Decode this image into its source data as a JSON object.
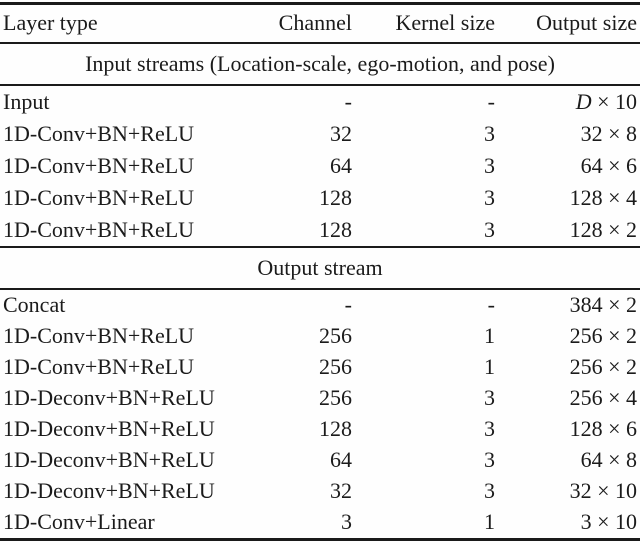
{
  "table": {
    "columns": [
      "Layer type",
      "Channel",
      "Kernel size",
      "Output size"
    ],
    "sections": [
      {
        "title": "Input streams (Location-scale, ego-motion, and pose)",
        "rows": [
          {
            "layer": "Input",
            "channel": "-",
            "kernel": "-",
            "output_var": "D",
            "output_rest": " × 10"
          },
          {
            "layer": "1D-Conv+BN+ReLU",
            "channel": "32",
            "kernel": "3",
            "output": "32 × 8"
          },
          {
            "layer": "1D-Conv+BN+ReLU",
            "channel": "64",
            "kernel": "3",
            "output": "64 × 6"
          },
          {
            "layer": "1D-Conv+BN+ReLU",
            "channel": "128",
            "kernel": "3",
            "output": "128 × 4"
          },
          {
            "layer": "1D-Conv+BN+ReLU",
            "channel": "128",
            "kernel": "3",
            "output": "128 × 2"
          }
        ]
      },
      {
        "title": "Output stream",
        "rows": [
          {
            "layer": "Concat",
            "channel": "-",
            "kernel": "-",
            "output": "384 × 2"
          },
          {
            "layer": "1D-Conv+BN+ReLU",
            "channel": "256",
            "kernel": "1",
            "output": "256 × 2"
          },
          {
            "layer": "1D-Conv+BN+ReLU",
            "channel": "256",
            "kernel": "1",
            "output": "256 × 2"
          },
          {
            "layer": "1D-Deconv+BN+ReLU",
            "channel": "256",
            "kernel": "3",
            "output": "256 × 4"
          },
          {
            "layer": "1D-Deconv+BN+ReLU",
            "channel": "128",
            "kernel": "3",
            "output": "128 × 6"
          },
          {
            "layer": "1D-Deconv+BN+ReLU",
            "channel": "64",
            "kernel": "3",
            "output": "64 × 8"
          },
          {
            "layer": "1D-Deconv+BN+ReLU",
            "channel": "32",
            "kernel": "3",
            "output": "32 × 10"
          },
          {
            "layer": "1D-Conv+Linear",
            "channel": "3",
            "kernel": "1",
            "output": "3 × 10"
          }
        ]
      }
    ],
    "colors": {
      "text": "#1b1b1b",
      "rule": "#1a1a1a",
      "background": "#fefefe"
    }
  }
}
